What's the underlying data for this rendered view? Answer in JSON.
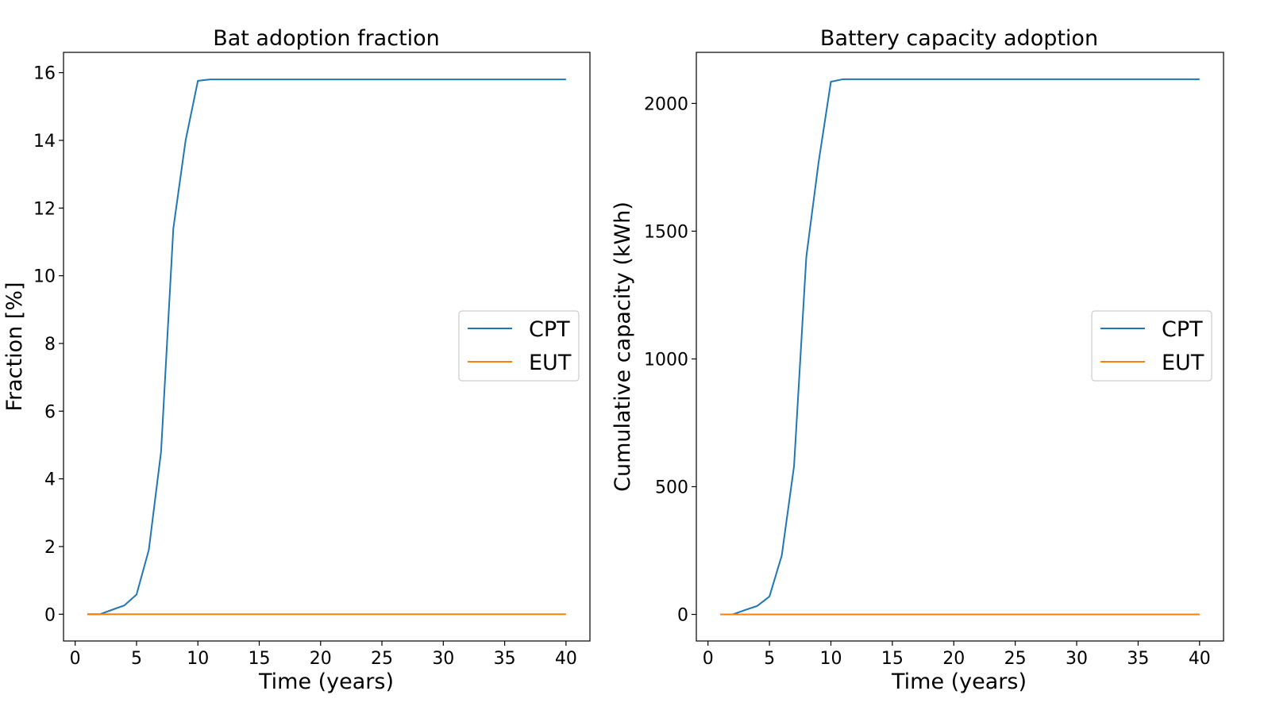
{
  "chart_data": [
    {
      "type": "line",
      "title": "Bat adoption fraction",
      "xlabel": "Time (years)",
      "ylabel": "Fraction [%]",
      "xlim": [
        -0.95,
        41.95
      ],
      "ylim": [
        -0.79,
        16.6
      ],
      "xticks": [
        0,
        5,
        10,
        15,
        20,
        25,
        30,
        35,
        40
      ],
      "yticks": [
        0,
        2,
        4,
        6,
        8,
        10,
        12,
        14,
        16
      ],
      "legend_position": "center-right",
      "grid": false,
      "x": [
        1,
        2,
        3,
        4,
        5,
        6,
        7,
        8,
        9,
        10,
        11,
        12,
        13,
        14,
        15,
        16,
        17,
        18,
        19,
        20,
        21,
        22,
        23,
        24,
        25,
        26,
        27,
        28,
        29,
        30,
        31,
        32,
        33,
        34,
        35,
        36,
        37,
        38,
        39,
        40
      ],
      "series": [
        {
          "name": "CPT",
          "color": "#1f77b4",
          "values": [
            0,
            0,
            0.13,
            0.26,
            0.58,
            1.9,
            4.8,
            11.4,
            14.0,
            15.76,
            15.8,
            15.8,
            15.8,
            15.8,
            15.8,
            15.8,
            15.8,
            15.8,
            15.8,
            15.8,
            15.8,
            15.8,
            15.8,
            15.8,
            15.8,
            15.8,
            15.8,
            15.8,
            15.8,
            15.8,
            15.8,
            15.8,
            15.8,
            15.8,
            15.8,
            15.8,
            15.8,
            15.8,
            15.8,
            15.8
          ]
        },
        {
          "name": "EUT",
          "color": "#ff7f0e",
          "values": [
            0,
            0,
            0,
            0,
            0,
            0,
            0,
            0,
            0,
            0,
            0,
            0,
            0,
            0,
            0,
            0,
            0,
            0,
            0,
            0,
            0,
            0,
            0,
            0,
            0,
            0,
            0,
            0,
            0,
            0,
            0,
            0,
            0,
            0,
            0,
            0,
            0,
            0,
            0,
            0
          ]
        }
      ]
    },
    {
      "type": "line",
      "title": "Battery capacity adoption",
      "xlabel": "Time (years)",
      "ylabel": "Cumulative capacity (kWh)",
      "xlim": [
        -0.95,
        41.95
      ],
      "ylim": [
        -104,
        2200
      ],
      "xticks": [
        0,
        5,
        10,
        15,
        20,
        25,
        30,
        35,
        40
      ],
      "yticks": [
        0,
        500,
        1000,
        1500,
        2000
      ],
      "legend_position": "center-right",
      "grid": false,
      "x": [
        1,
        2,
        3,
        4,
        5,
        6,
        7,
        8,
        9,
        10,
        11,
        12,
        13,
        14,
        15,
        16,
        17,
        18,
        19,
        20,
        21,
        22,
        23,
        24,
        25,
        26,
        27,
        28,
        29,
        30,
        31,
        32,
        33,
        34,
        35,
        36,
        37,
        38,
        39,
        40
      ],
      "series": [
        {
          "name": "CPT",
          "color": "#1f77b4",
          "values": [
            0,
            0,
            17,
            33,
            70,
            230,
            580,
            1400,
            1770,
            2085,
            2095,
            2095,
            2095,
            2095,
            2095,
            2095,
            2095,
            2095,
            2095,
            2095,
            2095,
            2095,
            2095,
            2095,
            2095,
            2095,
            2095,
            2095,
            2095,
            2095,
            2095,
            2095,
            2095,
            2095,
            2095,
            2095,
            2095,
            2095,
            2095,
            2095
          ]
        },
        {
          "name": "EUT",
          "color": "#ff7f0e",
          "values": [
            0,
            0,
            0,
            0,
            0,
            0,
            0,
            0,
            0,
            0,
            0,
            0,
            0,
            0,
            0,
            0,
            0,
            0,
            0,
            0,
            0,
            0,
            0,
            0,
            0,
            0,
            0,
            0,
            0,
            0,
            0,
            0,
            0,
            0,
            0,
            0,
            0,
            0,
            0,
            0
          ]
        }
      ]
    }
  ]
}
